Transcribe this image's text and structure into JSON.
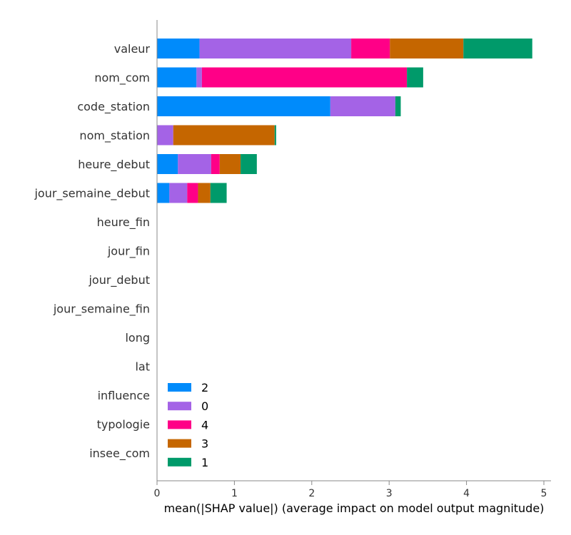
{
  "chart_data": {
    "type": "bar",
    "orientation": "horizontal",
    "stacked": true,
    "title": "",
    "xlabel": "mean(|SHAP value|) (average impact on model output magnitude)",
    "ylabel": "",
    "xlim": [
      0,
      5.1
    ],
    "xticks": [
      0,
      1,
      2,
      3,
      4,
      5
    ],
    "grid": false,
    "legend_position": "lower-left",
    "categories": [
      "valeur",
      "nom_com",
      "code_station",
      "nom_station",
      "heure_debut",
      "jour_semaine_debut",
      "heure_fin",
      "jour_fin",
      "jour_debut",
      "jour_semaine_fin",
      "long",
      "lat",
      "influence",
      "typologie",
      "insee_com"
    ],
    "series": [
      {
        "name": "2",
        "color": "#008bfb",
        "values": [
          0.55,
          0.51,
          2.24,
          0.0,
          0.27,
          0.16,
          0,
          0,
          0,
          0,
          0,
          0,
          0,
          0,
          0
        ]
      },
      {
        "name": "0",
        "color": "#a463e6",
        "values": [
          1.96,
          0.07,
          0.84,
          0.21,
          0.43,
          0.23,
          0,
          0,
          0,
          0,
          0,
          0,
          0,
          0,
          0
        ]
      },
      {
        "name": "4",
        "color": "#ff0087",
        "values": [
          0.5,
          2.65,
          0.0,
          0.0,
          0.11,
          0.14,
          0,
          0,
          0,
          0,
          0,
          0,
          0,
          0,
          0
        ]
      },
      {
        "name": "3",
        "color": "#c56600",
        "values": [
          0.95,
          0.0,
          0.0,
          1.31,
          0.27,
          0.16,
          0,
          0,
          0,
          0,
          0,
          0,
          0,
          0,
          0
        ]
      },
      {
        "name": "1",
        "color": "#009a6a",
        "values": [
          0.89,
          0.21,
          0.07,
          0.02,
          0.21,
          0.21,
          0,
          0,
          0,
          0,
          0,
          0,
          0,
          0,
          0
        ]
      }
    ]
  }
}
